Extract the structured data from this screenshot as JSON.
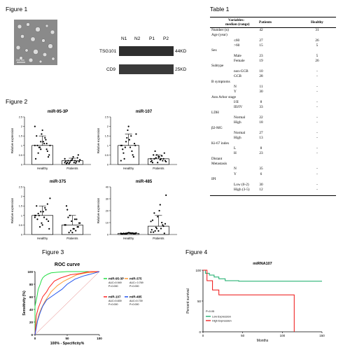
{
  "figure1": {
    "title": "Figure 1",
    "scale_bar": "200 nm",
    "lanes": [
      "N1",
      "N2",
      "P1",
      "P2"
    ],
    "bands": [
      {
        "protein": "TSG101",
        "size": "44KD"
      },
      {
        "protein": "CD9",
        "size": "25KD"
      }
    ]
  },
  "table1": {
    "title": "Table 1",
    "header": {
      "variables": "Variables:",
      "variables2": "median (range)",
      "patients": "Patients",
      "healthy": "Healthy"
    },
    "rows": [
      {
        "label": "Number (n)",
        "indent": false,
        "patients": "42",
        "healthy": "31"
      },
      {
        "label": "Age (year)",
        "indent": false,
        "patients": "",
        "healthy": ""
      },
      {
        "label": "≤60",
        "indent": true,
        "patients": "27",
        "healthy": "26"
      },
      {
        "label": ">60",
        "indent": true,
        "patients": "15",
        "healthy": "5"
      },
      {
        "label": "Sex",
        "indent": false,
        "patients": "",
        "healthy": ""
      },
      {
        "label": "Male",
        "indent": true,
        "patients": "23",
        "healthy": "5"
      },
      {
        "label": "Female",
        "indent": true,
        "patients": "19",
        "healthy": "26"
      },
      {
        "label": "Subtype",
        "indent": false,
        "patients": "",
        "healthy": ""
      },
      {
        "label": "non-GCB",
        "indent": true,
        "patients": "10",
        "healthy": "-"
      },
      {
        "label": "GCB",
        "indent": true,
        "patients": "28",
        "healthy": "-"
      },
      {
        "label": "B symptoms",
        "indent": false,
        "patients": "",
        "healthy": ""
      },
      {
        "label": "N",
        "indent": true,
        "patients": "11",
        "healthy": "-"
      },
      {
        "label": "Y",
        "indent": true,
        "patients": "30",
        "healthy": "-"
      },
      {
        "label": "Ann Arbor stage",
        "indent": false,
        "patients": "",
        "healthy": ""
      },
      {
        "label": "I/II",
        "indent": true,
        "patients": "8",
        "healthy": "-"
      },
      {
        "label": "III/IV",
        "indent": true,
        "patients": "33",
        "healthy": "-"
      },
      {
        "label": "LDH",
        "indent": false,
        "patients": "",
        "healthy": ""
      },
      {
        "label": "Normal",
        "indent": true,
        "patients": "22",
        "healthy": "-"
      },
      {
        "label": "High",
        "indent": true,
        "patients": "18",
        "healthy": "-"
      },
      {
        "label": "β2-MG",
        "indent": false,
        "patients": "",
        "healthy": ""
      },
      {
        "label": "Normal",
        "indent": true,
        "patients": "27",
        "healthy": "-"
      },
      {
        "label": "High",
        "indent": true,
        "patients": "13",
        "healthy": "-"
      },
      {
        "label": "Ki-67 index",
        "indent": false,
        "patients": "",
        "healthy": ""
      },
      {
        "label": "L",
        "indent": true,
        "patients": "8",
        "healthy": "-"
      },
      {
        "label": "H",
        "indent": true,
        "patients": "23",
        "healthy": "-"
      },
      {
        "label": "Distant",
        "indent": false,
        "patients": "",
        "healthy": ""
      },
      {
        "label": "Metastasis",
        "indent": false,
        "patients": "",
        "healthy": ""
      },
      {
        "label": "N",
        "indent": true,
        "patients": "35",
        "healthy": "-"
      },
      {
        "label": "Y",
        "indent": true,
        "patients": "6",
        "healthy": "-"
      },
      {
        "label": "IPI",
        "indent": false,
        "patients": "",
        "healthy": ""
      },
      {
        "label": "Low (0-2)",
        "indent": true,
        "patients": "30",
        "healthy": "-"
      },
      {
        "label": "High (3-5)",
        "indent": true,
        "patients": "12",
        "healthy": "-"
      }
    ]
  },
  "figure2": {
    "title": "Figure 2"
  },
  "figure3": {
    "title": "Figure 3"
  },
  "figure4": {
    "title": "Figure 4"
  },
  "chart_data": [
    {
      "type": "bar",
      "title": "miR-95-3P",
      "ylabel": "Relative expression",
      "categories": [
        "Healthy",
        "Patients"
      ],
      "values": [
        1.0,
        0.2
      ],
      "error": [
        0.5,
        0.13
      ],
      "ylim": [
        0,
        2.5
      ],
      "yticks": [
        0.0,
        0.5,
        1.0,
        1.5,
        2.0,
        2.5
      ],
      "points": [
        [
          1.0,
          1.2,
          0.8,
          1.5,
          1.8,
          0.4,
          0.6,
          1.1,
          1.0,
          0.9,
          1.3,
          0.3,
          1.6,
          0.7,
          1.0,
          1.2,
          0.5,
          0.9,
          1.4,
          2.0,
          0.8,
          1.1
        ],
        [
          0.1,
          0.2,
          0.15,
          0.05,
          0.3,
          0.5,
          0.2,
          0.1,
          0.25,
          0.12,
          0.08,
          0.18,
          0.22,
          0.35,
          0.1,
          0.4,
          0.15,
          0.05,
          0.2,
          0.3
        ]
      ]
    },
    {
      "type": "bar",
      "title": "miR-107",
      "ylabel": "Relative expression",
      "categories": [
        "Healthy",
        "Patients"
      ],
      "values": [
        1.0,
        0.3
      ],
      "error": [
        0.6,
        0.2
      ],
      "ylim": [
        0,
        2.5
      ],
      "yticks": [
        0.0,
        0.5,
        1.0,
        1.5,
        2.0,
        2.5
      ],
      "points": [
        [
          1.0,
          1.4,
          0.5,
          0.8,
          2.0,
          1.1,
          0.3,
          0.9,
          1.6,
          1.2,
          0.7,
          1.0,
          1.8,
          0.4,
          0.6,
          1.3,
          1.0,
          0.9,
          1.5,
          0.2
        ],
        [
          0.3,
          0.5,
          0.2,
          0.1,
          0.4,
          0.6,
          0.3,
          0.25,
          0.15,
          0.35,
          0.45,
          0.2,
          0.1,
          0.3,
          0.5,
          0.4,
          0.2,
          0.7,
          0.3,
          0.15
        ]
      ]
    },
    {
      "type": "bar",
      "title": "miR-375",
      "ylabel": "Relative expression",
      "categories": [
        "Healthy",
        "Patients"
      ],
      "values": [
        1.0,
        0.5
      ],
      "error": [
        0.5,
        0.5
      ],
      "ylim": [
        0,
        2.5
      ],
      "yticks": [
        0.0,
        0.5,
        1.0,
        1.5,
        2.0,
        2.5
      ],
      "points": [
        [
          1.0,
          1.2,
          0.8,
          1.5,
          0.5,
          0.7,
          1.1,
          0.9,
          1.9,
          0.4,
          1.3,
          1.0,
          0.6,
          1.6,
          0.8,
          1.2,
          0.3,
          1.0,
          1.4,
          0.9
        ],
        [
          0.5,
          0.2,
          0.8,
          1.5,
          0.1,
          0.4,
          0.9,
          0.3,
          0.6,
          1.0,
          0.2,
          0.5,
          0.7,
          0.4,
          1.3,
          0.3,
          0.6,
          0.1,
          0.8,
          0.5
        ]
      ]
    },
    {
      "type": "bar",
      "title": "miR-485",
      "ylabel": "Relative expression",
      "categories": [
        "Healthy",
        "Patients"
      ],
      "values": [
        1.0,
        7.0
      ],
      "error": [
        0.4,
        9.0
      ],
      "ylim": [
        0,
        40
      ],
      "yticks": [
        0,
        10,
        20,
        30,
        40
      ],
      "points": [
        [
          1.0,
          0.8,
          1.2,
          0.5,
          1.5,
          0.9,
          0.7,
          1.1,
          1.3,
          0.6,
          1.0,
          0.4,
          1.2,
          0.8,
          1.0,
          1.4,
          0.9,
          0.6,
          1.1,
          0.7
        ],
        [
          2,
          5,
          8,
          12,
          3,
          1,
          18,
          25,
          33,
          6,
          10,
          4,
          15,
          7,
          2,
          20,
          9,
          3,
          5,
          11
        ]
      ]
    },
    {
      "type": "line",
      "title": "ROC curve",
      "xlabel": "100% - Specificity%",
      "ylabel": "Sensitivity (%)",
      "xlim": [
        0,
        100
      ],
      "ylim": [
        0,
        100
      ],
      "xticks": [
        0,
        50,
        100
      ],
      "yticks": [
        0,
        20,
        40,
        60,
        80,
        100
      ],
      "series": [
        {
          "name": "miR-95-3P",
          "color": "#22dd44",
          "auc": "AUC=0.949",
          "p": "P=0.000",
          "x": [
            0,
            0,
            3,
            5,
            8,
            10,
            12,
            15,
            20,
            25,
            35,
            50,
            70,
            100
          ],
          "y": [
            0,
            45,
            60,
            72,
            80,
            86,
            90,
            93,
            96,
            98,
            99,
            100,
            100,
            100
          ]
        },
        {
          "name": "miR-375",
          "color": "#ff9933",
          "auc": "AUC= 0.769",
          "p": "P=0.000",
          "x": [
            0,
            3,
            6,
            10,
            15,
            20,
            25,
            35,
            45,
            55,
            65,
            80,
            100
          ],
          "y": [
            0,
            20,
            32,
            42,
            52,
            60,
            68,
            78,
            85,
            90,
            95,
            98,
            100
          ]
        },
        {
          "name": "miR-107",
          "color": "#ff2222",
          "auc": "AUC=0.839",
          "p": "P=0.000",
          "x": [
            0,
            2,
            5,
            8,
            12,
            18,
            22,
            30,
            40,
            55,
            70,
            85,
            100
          ],
          "y": [
            0,
            30,
            42,
            50,
            60,
            68,
            75,
            85,
            90,
            95,
            97,
            100,
            100
          ]
        },
        {
          "name": "miR-485",
          "color": "#2255ee",
          "auc": "AUC=0.739",
          "p": "P=0.000",
          "x": [
            0,
            4,
            8,
            12,
            18,
            25,
            32,
            42,
            50,
            62,
            75,
            90,
            100
          ],
          "y": [
            0,
            22,
            35,
            45,
            55,
            60,
            65,
            72,
            80,
            88,
            93,
            97,
            100
          ]
        }
      ]
    },
    {
      "type": "line",
      "title": "miRNA107",
      "xlabel": "Months",
      "ylabel": "Percent survival",
      "xlim": [
        0,
        150
      ],
      "ylim": [
        0,
        100
      ],
      "xticks": [
        0,
        50,
        100,
        150
      ],
      "yticks": [
        0,
        50,
        100
      ],
      "annotation": "P<0.05",
      "series": [
        {
          "name": "Low Expression",
          "color": "#11aa66",
          "x": [
            0,
            3,
            3,
            8,
            8,
            14,
            14,
            20,
            20,
            28,
            28,
            45,
            45,
            150
          ],
          "y": [
            100,
            100,
            95,
            95,
            92,
            92,
            89,
            89,
            86,
            86,
            83,
            83,
            82,
            82
          ]
        },
        {
          "name": "High Expression",
          "color": "#ee1111",
          "x": [
            0,
            5,
            5,
            12,
            12,
            20,
            20,
            60,
            60,
            115,
            115
          ],
          "y": [
            100,
            100,
            83,
            83,
            68,
            68,
            60,
            60,
            60,
            60,
            0
          ]
        }
      ]
    }
  ]
}
